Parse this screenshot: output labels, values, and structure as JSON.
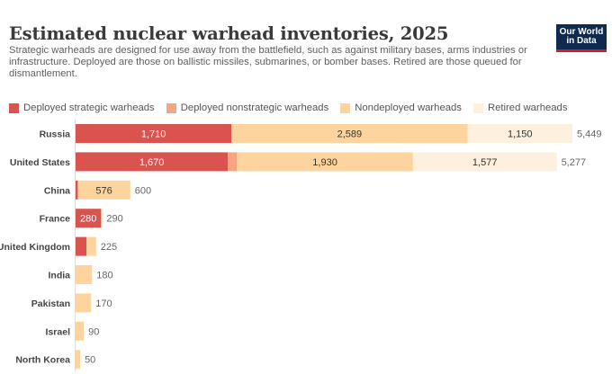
{
  "header": {
    "title": "Estimated nuclear warhead inventories, 2025",
    "subtitle": "Strategic warheads are designed for use away from the battlefield, such as against military bases, arms industries or infrastructure. Deployed are those on ballistic missiles, submarines, or bomber bases. Retired are those queued for dismantlement.",
    "logo_line1": "Our World",
    "logo_line2": "in Data"
  },
  "chart_data": {
    "type": "bar",
    "orientation": "horizontal",
    "stacked": true,
    "title": "Estimated nuclear warhead inventories, 2025",
    "xlabel": "",
    "ylabel": "",
    "xlim": [
      0,
      5449
    ],
    "grid": false,
    "legend_position": "top",
    "categories": [
      "Russia",
      "United States",
      "China",
      "France",
      "United Kingdom",
      "India",
      "Pakistan",
      "Israel",
      "North Korea"
    ],
    "series": [
      {
        "name": "Deployed strategic warheads",
        "color": "#d9534f",
        "values": [
          1710,
          1670,
          24,
          280,
          120,
          0,
          0,
          0,
          0
        ],
        "label_color": "#ffffff"
      },
      {
        "name": "Deployed nonstrategic warheads",
        "color": "#f4a582",
        "values": [
          0,
          100,
          0,
          0,
          0,
          0,
          0,
          0,
          0
        ],
        "label_color": "#333333"
      },
      {
        "name": "Nondeployed warheads",
        "color": "#fdd49e",
        "values": [
          2589,
          1930,
          576,
          10,
          105,
          180,
          170,
          90,
          50
        ],
        "label_color": "#333333"
      },
      {
        "name": "Retired warheads",
        "color": "#fdf0de",
        "values": [
          1150,
          1577,
          0,
          0,
          0,
          0,
          0,
          0,
          0
        ],
        "label_color": "#333333"
      }
    ],
    "segment_labels": [
      [
        "1,710",
        null,
        "2,589",
        "1,150"
      ],
      [
        "1,670",
        null,
        "1,930",
        "1,577"
      ],
      [
        null,
        null,
        "576",
        null
      ],
      [
        "280",
        null,
        null,
        null
      ],
      [
        null,
        null,
        null,
        null
      ],
      [
        null,
        null,
        null,
        null
      ],
      [
        null,
        null,
        null,
        null
      ],
      [
        null,
        null,
        null,
        null
      ],
      [
        null,
        null,
        null,
        null
      ]
    ],
    "totals": [
      "5,449",
      "5,277",
      "600",
      "290",
      "225",
      "180",
      "170",
      "90",
      "50"
    ]
  }
}
